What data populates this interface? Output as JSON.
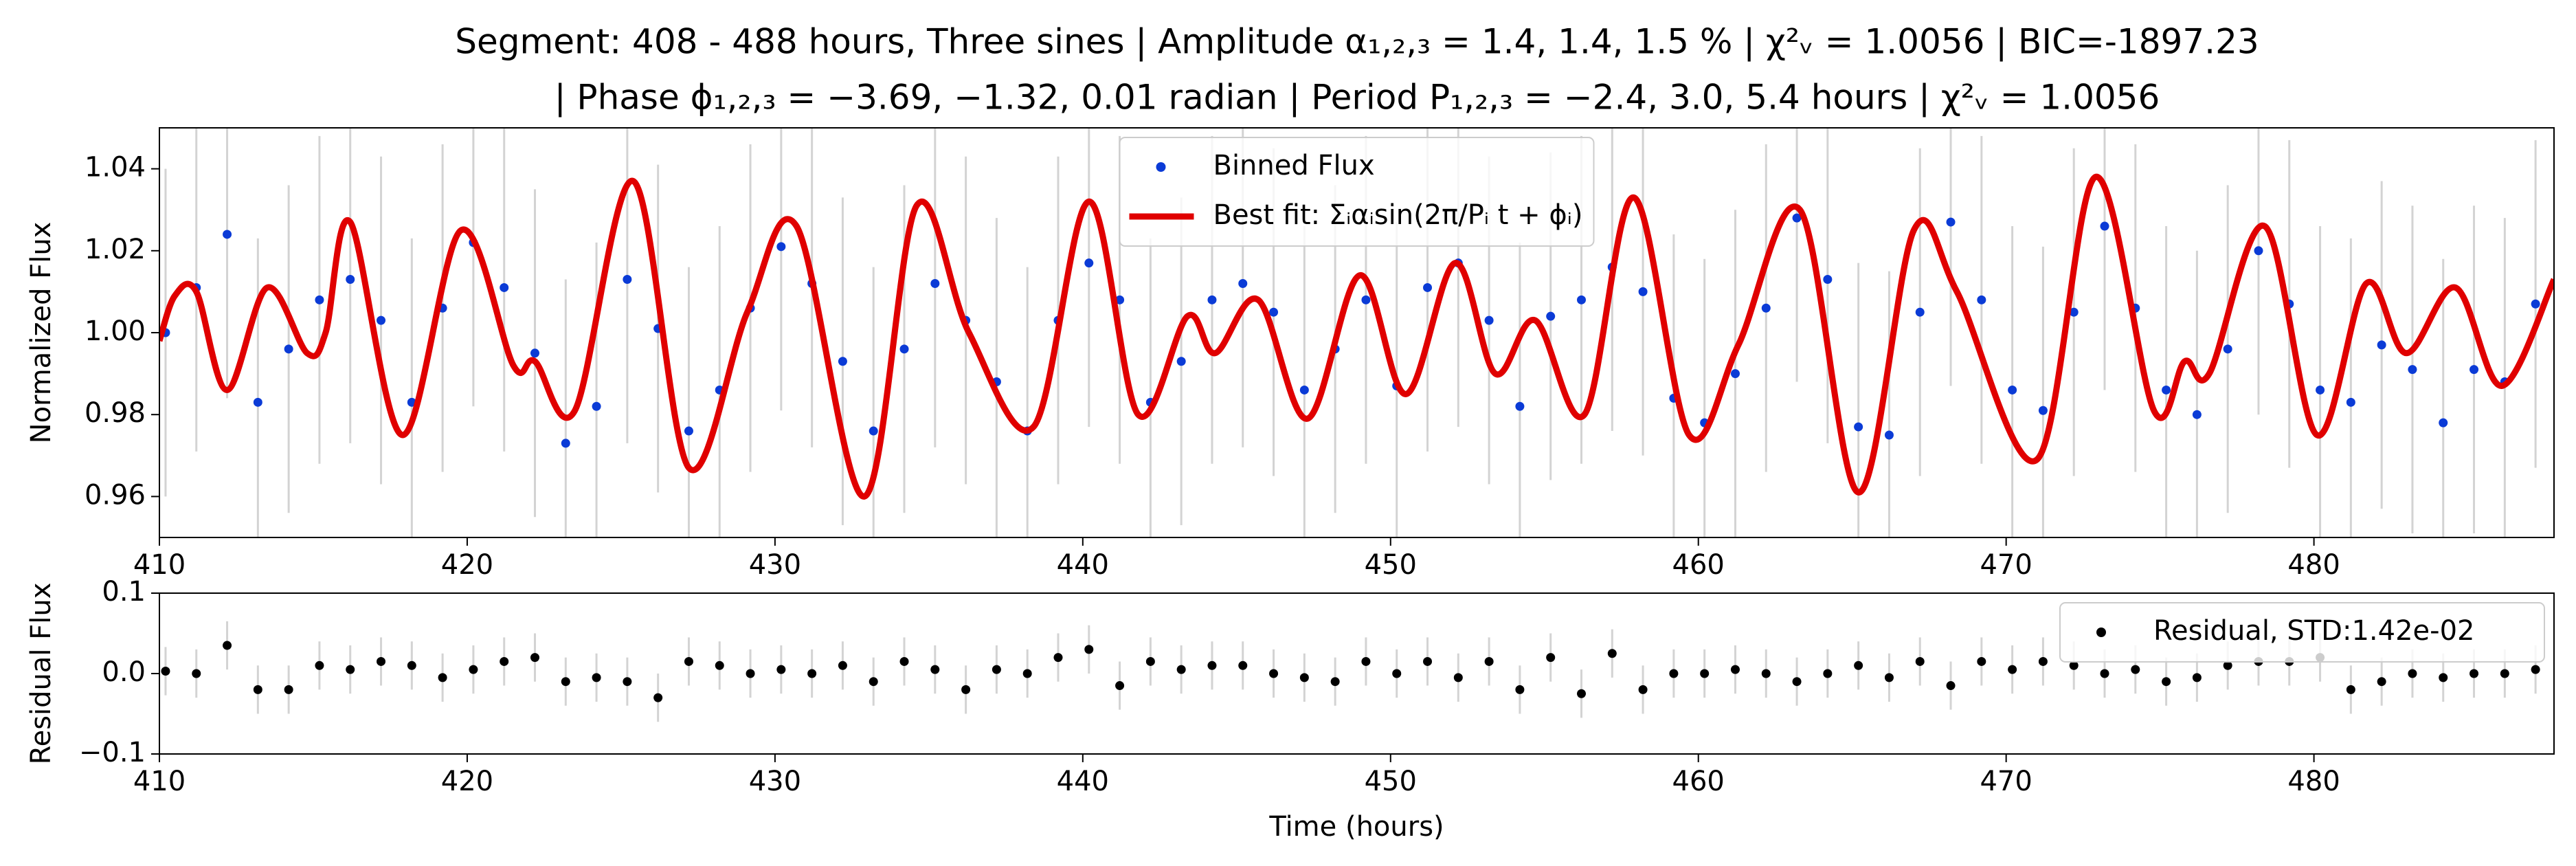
{
  "chart_data": [
    {
      "type": "line",
      "title": "Segment: 408 - 488 hours, Three sines  |  Amplitude α₁,₂,₃ = 1.4, 1.4, 1.5 %  |  χ²ᵥ = 1.0056   |  BIC=-1897.23",
      "subtitle": "|  Phase ϕ₁,₂,₃ = −3.69, −1.32, 0.01 radian  |  Period P₁,₂,₃ = −2.4, 3.0, 5.4 hours  |  χ²ᵥ = 1.0056",
      "ylabel": "Normalized Flux",
      "xlim": [
        410,
        487.8
      ],
      "ylim": [
        0.95,
        1.05
      ],
      "xticks": [
        410,
        420,
        430,
        440,
        450,
        460,
        470,
        480
      ],
      "yticks": [
        0.96,
        0.98,
        {
          "value": 1,
          "label": "1.00"
        },
        1.02,
        1.04
      ],
      "legend": "upper center",
      "series": [
        {
          "name": "Binned Flux",
          "type": "scatter",
          "color": "#0b3bd6",
          "error": 0.04,
          "error_color": "#d3d3d3",
          "x": [
            410.2,
            411.2,
            412.2,
            413.2,
            414.2,
            415.2,
            416.2,
            417.2,
            418.2,
            419.2,
            420.2,
            421.2,
            422.2,
            423.2,
            424.2,
            425.2,
            426.2,
            427.2,
            428.2,
            429.2,
            430.2,
            431.2,
            432.2,
            433.2,
            434.2,
            435.2,
            436.2,
            437.2,
            438.2,
            439.2,
            440.2,
            441.2,
            442.2,
            443.2,
            444.2,
            445.2,
            446.2,
            447.2,
            448.2,
            449.2,
            450.2,
            451.2,
            452.2,
            453.2,
            454.2,
            455.2,
            456.2,
            457.2,
            458.2,
            459.2,
            460.2,
            461.2,
            462.2,
            463.2,
            464.2,
            465.2,
            466.2,
            467.2,
            468.2,
            469.2,
            470.2,
            471.2,
            472.2,
            473.2,
            474.2,
            475.2,
            476.2,
            477.2,
            478.2,
            479.2,
            480.2,
            481.2,
            482.2,
            483.2,
            484.2,
            485.2,
            486.2,
            487.2
          ],
          "values": [
            1.0,
            1.011,
            1.024,
            0.983,
            0.996,
            1.008,
            1.013,
            1.003,
            0.983,
            1.006,
            1.022,
            1.011,
            0.995,
            0.973,
            0.982,
            1.013,
            1.001,
            0.976,
            0.986,
            1.006,
            1.021,
            1.012,
            0.993,
            0.976,
            0.996,
            1.012,
            1.003,
            0.988,
            0.976,
            1.003,
            1.017,
            1.008,
            0.983,
            0.993,
            1.008,
            1.012,
            1.005,
            0.986,
            0.996,
            1.008,
            0.987,
            1.011,
            1.017,
            1.003,
            0.982,
            1.004,
            1.008,
            1.016,
            1.01,
            0.984,
            0.978,
            0.99,
            1.006,
            1.028,
            1.013,
            0.977,
            0.975,
            1.005,
            1.027,
            1.008,
            0.986,
            0.981,
            1.005,
            1.026,
            1.006,
            0.986,
            0.98,
            0.996,
            1.02,
            1.007,
            0.986,
            0.983,
            0.997,
            0.991,
            0.978,
            0.991,
            0.988,
            1.007
          ]
        },
        {
          "name": "Best fit: Σᵢαᵢsin(2π/Pᵢ t + ϕᵢ)",
          "type": "line",
          "color": "#e00000",
          "x": [
            410,
            410.5,
            411.2,
            412.2,
            413.5,
            414.8,
            415.4,
            416.2,
            417.9,
            419.8,
            421.5,
            422.2,
            423.5,
            425.4,
            427.2,
            429.1,
            430.7,
            432.9,
            434.6,
            436.3,
            438.4,
            440.2,
            441.8,
            443.4,
            444.3,
            445.7,
            447.3,
            449.0,
            450.5,
            452.1,
            453.4,
            454.7,
            456.3,
            457.9,
            459.7,
            461.3,
            463.3,
            465.2,
            467.0,
            468.4,
            471.0,
            472.9,
            474.8,
            475.8,
            476.6,
            478.4,
            480.1,
            481.7,
            483.0,
            484.6,
            486.1,
            487.8
          ],
          "values": [
            0.998,
            1.009,
            1.01,
            0.986,
            1.011,
            0.995,
            1.0,
            1.027,
            0.975,
            1.025,
            0.992,
            0.993,
            0.981,
            1.037,
            0.967,
            1.005,
            1.026,
            0.96,
            1.031,
            1.0,
            0.977,
            1.032,
            0.98,
            1.004,
            0.995,
            1.008,
            0.979,
            1.014,
            0.985,
            1.017,
            0.99,
            1.003,
            0.98,
            1.033,
            0.975,
            0.997,
            1.03,
            0.961,
            1.025,
            1.01,
            0.969,
            1.038,
            0.981,
            0.993,
            0.99,
            1.026,
            0.975,
            1.012,
            0.995,
            1.011,
            0.987,
            1.013
          ]
        }
      ]
    },
    {
      "type": "line",
      "ylabel": "Residual Flux",
      "xlabel": "Time (hours)",
      "xlim": [
        410,
        487.8
      ],
      "ylim": [
        -0.1,
        0.1
      ],
      "xticks": [
        410,
        420,
        430,
        440,
        450,
        460,
        470,
        480
      ],
      "yticks": [
        {
          "value": -0.1,
          "label": "−0.1"
        },
        {
          "value": 0,
          "label": "0.0"
        },
        0.1
      ],
      "legend": "upper right",
      "series": [
        {
          "name": "Residual, STD:1.42e-02",
          "type": "scatter",
          "color": "#000000",
          "error": 0.03,
          "error_color": "#d3d3d3",
          "x": [
            410.2,
            411.2,
            412.2,
            413.2,
            414.2,
            415.2,
            416.2,
            417.2,
            418.2,
            419.2,
            420.2,
            421.2,
            422.2,
            423.2,
            424.2,
            425.2,
            426.2,
            427.2,
            428.2,
            429.2,
            430.2,
            431.2,
            432.2,
            433.2,
            434.2,
            435.2,
            436.2,
            437.2,
            438.2,
            439.2,
            440.2,
            441.2,
            442.2,
            443.2,
            444.2,
            445.2,
            446.2,
            447.2,
            448.2,
            449.2,
            450.2,
            451.2,
            452.2,
            453.2,
            454.2,
            455.2,
            456.2,
            457.2,
            458.2,
            459.2,
            460.2,
            461.2,
            462.2,
            463.2,
            464.2,
            465.2,
            466.2,
            467.2,
            468.2,
            469.2,
            470.2,
            471.2,
            472.2,
            473.2,
            474.2,
            475.2,
            476.2,
            477.2,
            478.2,
            479.2,
            480.2,
            481.2,
            482.2,
            483.2,
            484.2,
            485.2,
            486.2,
            487.2
          ],
          "values": [
            0.003,
            0,
            0.035,
            -0.02,
            -0.02,
            0.01,
            0.005,
            0.015,
            0.01,
            -0.005,
            0.005,
            0.015,
            0.02,
            -0.01,
            -0.005,
            -0.01,
            -0.03,
            0.015,
            0.01,
            0,
            0.005,
            0,
            0.01,
            -0.01,
            0.015,
            0.005,
            -0.02,
            0.005,
            0,
            0.02,
            0.03,
            -0.015,
            0.015,
            0.005,
            0.01,
            0.01,
            0,
            -0.005,
            -0.01,
            0.015,
            0,
            0.015,
            -0.005,
            0.015,
            -0.02,
            0.02,
            -0.025,
            0.025,
            -0.02,
            0,
            0,
            0.005,
            0,
            -0.01,
            0,
            0.01,
            -0.005,
            0.015,
            -0.015,
            0.015,
            0.005,
            0.015,
            0.01,
            0,
            0.005,
            -0.01,
            -0.005,
            0.01,
            0.015,
            0.015,
            0.02,
            -0.02,
            -0.01,
            0,
            -0.005,
            0,
            0,
            0.005
          ]
        }
      ]
    }
  ]
}
